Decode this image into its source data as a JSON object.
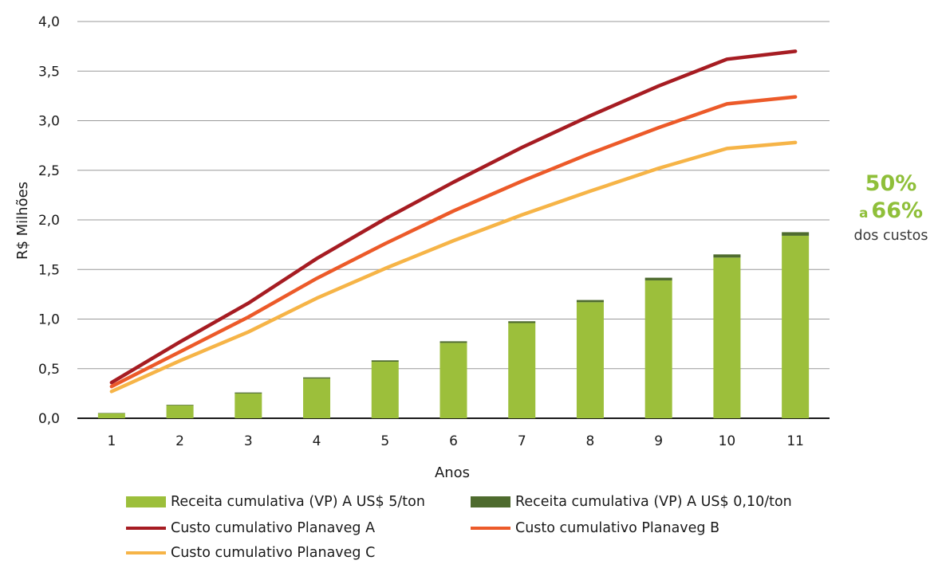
{
  "chart_data": {
    "type": "bar",
    "x": [
      1,
      2,
      3,
      4,
      5,
      6,
      7,
      8,
      9,
      10,
      11
    ],
    "xlabel": "Anos",
    "ylabel": "R$ Milhões",
    "ylim": [
      0,
      4
    ],
    "yticks": [
      "0,0",
      "0,5",
      "1,0",
      "1,5",
      "2,0",
      "2,5",
      "3,0",
      "3,5",
      "4,0"
    ],
    "grid": true,
    "legend_position": "bottom",
    "bar_series": [
      {
        "name": "Receita cumulativa (VP) A US$ 5/ton",
        "color": "#9cbf3b",
        "values": [
          0.05,
          0.13,
          0.25,
          0.4,
          0.57,
          0.76,
          0.96,
          1.17,
          1.39,
          1.62,
          1.84
        ]
      },
      {
        "name": "Receita cumulativa (VP) A US$ 0,10/ton",
        "color": "#4e6b2e",
        "values": [
          0.003,
          0.006,
          0.01,
          0.012,
          0.014,
          0.016,
          0.018,
          0.022,
          0.027,
          0.032,
          0.036
        ]
      }
    ],
    "line_series": [
      {
        "name": "Custo cumulativo Planaveg A",
        "color": "#a61c22",
        "values": [
          0.36,
          0.77,
          1.16,
          1.61,
          2.01,
          2.38,
          2.73,
          3.05,
          3.35,
          3.62,
          3.7
        ]
      },
      {
        "name": "Custo cumulativo Planaveg B",
        "color": "#ec5a29",
        "values": [
          0.32,
          0.67,
          1.02,
          1.41,
          1.76,
          2.09,
          2.39,
          2.67,
          2.93,
          3.17,
          3.24
        ]
      },
      {
        "name": "Custo cumulativo Planaveg C",
        "color": "#f6b447",
        "values": [
          0.27,
          0.58,
          0.87,
          1.21,
          1.51,
          1.79,
          2.05,
          2.29,
          2.52,
          2.72,
          2.78
        ]
      }
    ]
  },
  "annotation": {
    "pct_low": "50%",
    "connector": "a",
    "pct_high": "66%",
    "text": "dos custos",
    "color": "#8fbf3a"
  },
  "legend": {
    "items": [
      {
        "label": "Receita cumulativa (VP) A US$ 5/ton",
        "kind": "bar",
        "color": "#9cbf3b"
      },
      {
        "label": "Receita cumulativa (VP) A US$ 0,10/ton",
        "kind": "bar",
        "color": "#4e6b2e"
      },
      {
        "label": "Custo cumulativo Planaveg A",
        "kind": "line",
        "color": "#a61c22"
      },
      {
        "label": "Custo cumulativo Planaveg B",
        "kind": "line",
        "color": "#ec5a29"
      },
      {
        "label": "Custo cumulativo Planaveg C",
        "kind": "line",
        "color": "#f6b447"
      }
    ]
  }
}
